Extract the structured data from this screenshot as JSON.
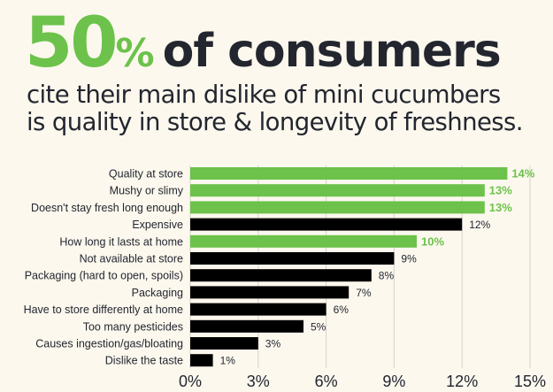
{
  "headline": {
    "number": "50",
    "percent": "%",
    "rest": "of consumers"
  },
  "subtitle": [
    "cite their main dislike of mini cucumbers",
    "is quality in store & longevity of freshness."
  ],
  "colors": {
    "highlight": "#6cc24a",
    "default": "#000000",
    "text": "#23262f",
    "grid": "#d4d2cc",
    "background": "#fcf8ee"
  },
  "chart_data": {
    "type": "bar",
    "orientation": "horizontal",
    "categories": [
      "Quality at store",
      "Mushy or slimy",
      "Doesn't stay fresh long enough",
      "Expensive",
      "How long it lasts at home",
      "Not available at store",
      "Packaging (hard to open, spoils)",
      "Packaging",
      "Have to store differently at home",
      "Too many pesticides",
      "Causes ingestion/gas/bloating",
      "Dislike the taste"
    ],
    "values": [
      14,
      13,
      13,
      12,
      10,
      9,
      8,
      7,
      6,
      5,
      3,
      1
    ],
    "labels": [
      "14%",
      "13%",
      "13%",
      "12%",
      "10%",
      "9%",
      "8%",
      "7%",
      "6%",
      "5%",
      "3%",
      "1%"
    ],
    "highlighted": [
      true,
      true,
      true,
      false,
      true,
      false,
      false,
      false,
      false,
      false,
      false,
      false
    ],
    "xlim": [
      0,
      15
    ],
    "xticks": [
      "0%",
      "3%",
      "6%",
      "9%",
      "12%",
      "15%"
    ],
    "xtick_values": [
      0,
      3,
      6,
      9,
      12,
      15
    ],
    "grid": true
  }
}
